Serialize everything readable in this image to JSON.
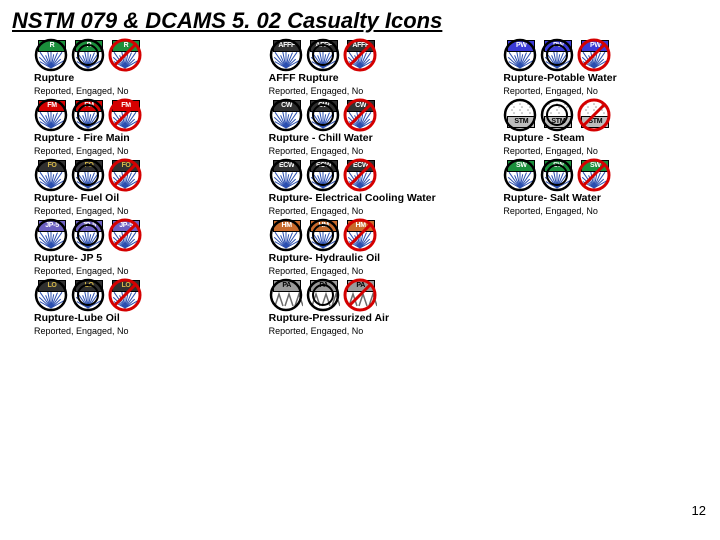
{
  "title": "NSTM 079 & DCAMS 5. 02 Casualty Icons",
  "page_number": "12",
  "subtitle_text": "Reported, Engaged, No",
  "colors": {
    "reported_ring": "#000000",
    "engaged_ring": "#000000",
    "no_ring": "#d40000",
    "no_slash": "#d40000",
    "burst_line": "#2b4fb0",
    "steam_line": "#9a9a9a"
  },
  "variants": [
    "reported",
    "engaged",
    "no"
  ],
  "rows": [
    [
      {
        "title": "Rupture",
        "code": "R",
        "bg": "#1a8f3b",
        "fg": "#ffffff"
      },
      {
        "title": "AFFF Rupture",
        "code": "AFFF",
        "bg": "#303030",
        "fg": "#ffffff"
      },
      {
        "title": "Rupture-Potable Water",
        "code": "PW",
        "bg": "#3a3ad6",
        "fg": "#ffffff"
      }
    ],
    [
      {
        "title": "Rupture - Fire Main",
        "code": "FM",
        "bg": "#d40000",
        "fg": "#ffffff"
      },
      {
        "title": "Rupture - Chill Water",
        "code": "CW",
        "bg": "#303030",
        "fg": "#ffffff"
      },
      {
        "title": "Rupture - Steam",
        "code": "STM",
        "bg": "#bdbdbd",
        "fg": "#000000",
        "steam": true
      }
    ],
    [
      {
        "title": "Rupture- Fuel Oil",
        "code": "FO",
        "bg": "#303030",
        "fg": "#d6b84a"
      },
      {
        "title": "Rupture- Electrical Cooling Water",
        "code": "ECW",
        "bg": "#303030",
        "fg": "#ffffff"
      },
      {
        "title": "Rupture- Salt Water",
        "code": "SW",
        "bg": "#1a8f3b",
        "fg": "#ffffff"
      }
    ],
    [
      {
        "title": "Rupture- JP 5",
        "code": "JP-5",
        "bg": "#6b5fbf",
        "fg": "#ffffff"
      },
      {
        "title": "Rupture- Hydraulic Oil",
        "code": "HM",
        "bg": "#c96a2b",
        "fg": "#ffffff"
      },
      null
    ],
    [
      {
        "title": "Rupture-Lube Oil",
        "code": "LO",
        "bg": "#303030",
        "fg": "#d6b84a"
      },
      {
        "title": "Rupture-Pressurized Air",
        "code": "PA",
        "bg": "#9a9a9a",
        "fg": "#000000",
        "air": true
      },
      null
    ]
  ]
}
